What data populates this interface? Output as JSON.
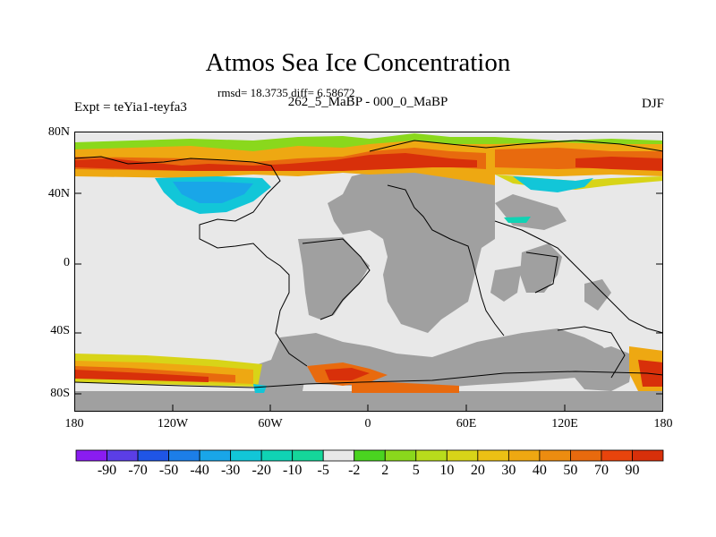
{
  "title": "Atmos Sea Ice Concentration",
  "stats": "rmsd= 18.3735 diff= 6.58672",
  "subtitle": "262_5_MaBP - 000_0_MaBP",
  "expt": "Expt = teYia1-teyfa3",
  "season": "DJF",
  "y_axis": [
    "80N",
    "40N",
    "0",
    "40S",
    "80S"
  ],
  "x_axis": [
    "180",
    "120W",
    "60W",
    "0",
    "60E",
    "120E",
    "180"
  ],
  "colorbar": {
    "labels": [
      "-90",
      "-70",
      "-50",
      "-40",
      "-30",
      "-20",
      "-10",
      "-5",
      "-2",
      "2",
      "5",
      "10",
      "20",
      "30",
      "40",
      "50",
      "70",
      "90"
    ],
    "colors": [
      "#8a1cf0",
      "#5b3ee6",
      "#1f55e6",
      "#1c7ee8",
      "#19a6e8",
      "#12c6d8",
      "#10d3b4",
      "#15d69a",
      "#e8e8e8",
      "#4ad420",
      "#8ad81c",
      "#b8dc1c",
      "#d8d418",
      "#ecc014",
      "#eea812",
      "#ec8c10",
      "#e86a0e",
      "#e8440c",
      "#d8300a"
    ]
  },
  "colors": {
    "land": "#a0a0a0",
    "no_change": "#e8e8e8",
    "coast": "#000000"
  }
}
